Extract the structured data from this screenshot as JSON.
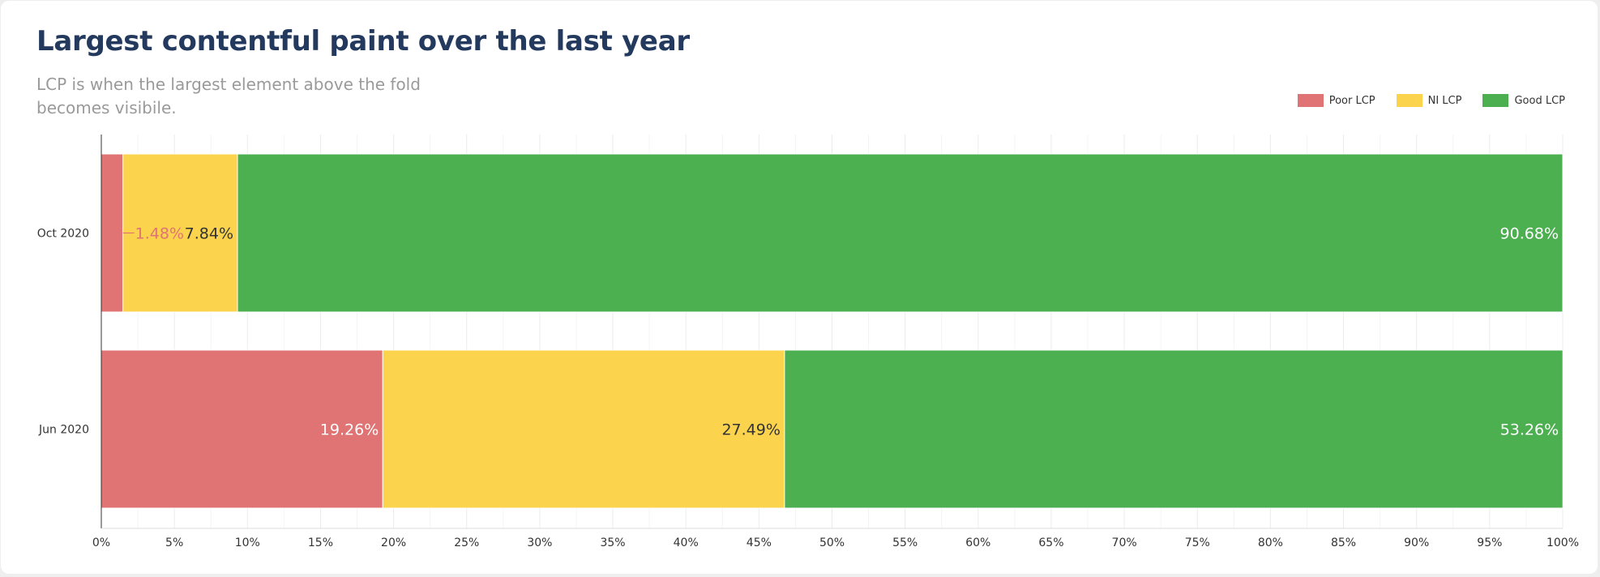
{
  "header": {
    "title": "Largest contentful paint over the last year",
    "subtitle": "LCP is when the largest element above the fold becomes visibile."
  },
  "chart_data": {
    "type": "bar",
    "orientation": "horizontal",
    "stacked": true,
    "categories": [
      "Oct 2020",
      "Jun 2020"
    ],
    "series": [
      {
        "name": "Poor LCP",
        "values": [
          1.48,
          19.26
        ],
        "color": "#e07474"
      },
      {
        "name": "NI LCP",
        "values": [
          7.84,
          27.49
        ],
        "color": "#fcd34d"
      },
      {
        "name": "Good LCP",
        "values": [
          90.68,
          53.26
        ],
        "color": "#4caf50"
      }
    ],
    "data_labels": [
      [
        "1.48%",
        "7.84%",
        "90.68%"
      ],
      [
        "19.26%",
        "27.49%",
        "53.26%"
      ]
    ],
    "xlim": [
      0,
      100
    ],
    "x_ticks": [
      "0%",
      "5%",
      "10%",
      "15%",
      "20%",
      "25%",
      "30%",
      "35%",
      "40%",
      "45%",
      "50%",
      "55%",
      "60%",
      "65%",
      "70%",
      "75%",
      "80%",
      "85%",
      "90%",
      "95%",
      "100%"
    ],
    "grid": true,
    "legend_position": "top-right"
  }
}
